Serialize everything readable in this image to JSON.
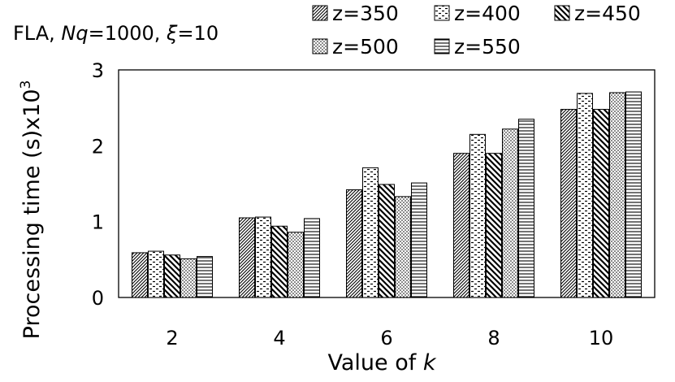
{
  "chart_data": {
    "type": "bar",
    "title": {
      "prefix": "FLA, ",
      "nq_symbol": "Nq",
      "nq_value": "=1000, ",
      "xi_symbol": "ξ",
      "xi_value": "=10"
    },
    "xlabel": {
      "text": "Value of ",
      "var": "k"
    },
    "ylabel": {
      "text": "Processing time (s)x10",
      "exponent": "3"
    },
    "categories": [
      "2",
      "4",
      "6",
      "8",
      "10"
    ],
    "ylim": [
      0,
      3
    ],
    "yticks": [
      "0",
      "1",
      "2",
      "3"
    ],
    "grid": false,
    "legend_position": "top-right",
    "series": [
      {
        "name": "z=350",
        "pattern": "dense-diagonal",
        "values": [
          0.59,
          1.05,
          1.42,
          1.9,
          2.48
        ]
      },
      {
        "name": "z=400",
        "pattern": "dashes",
        "values": [
          0.61,
          1.06,
          1.71,
          2.15,
          2.69
        ]
      },
      {
        "name": "z=450",
        "pattern": "wide-diagonal",
        "values": [
          0.56,
          0.94,
          1.49,
          1.9,
          2.48
        ]
      },
      {
        "name": "z=500",
        "pattern": "dots",
        "values": [
          0.51,
          0.86,
          1.33,
          2.22,
          2.7
        ]
      },
      {
        "name": "z=550",
        "pattern": "horizontal",
        "values": [
          0.54,
          1.04,
          1.51,
          2.35,
          2.71
        ]
      }
    ]
  }
}
